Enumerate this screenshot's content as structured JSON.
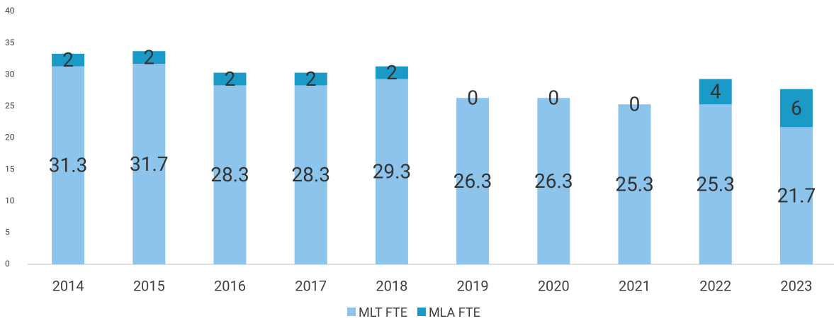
{
  "chart_data": {
    "type": "stacked_bar",
    "categories": [
      "2014",
      "2015",
      "2016",
      "2017",
      "2018",
      "2019",
      "2020",
      "2021",
      "2022",
      "2023"
    ],
    "series": [
      {
        "name": "MLT FTE",
        "color": "#8cc4eb",
        "values": [
          31.3,
          31.7,
          28.3,
          28.3,
          29.3,
          26.3,
          26.3,
          25.3,
          25.3,
          21.7
        ]
      },
      {
        "name": "MLA FTE",
        "color": "#1b9ac8",
        "values": [
          2,
          2,
          2,
          2,
          2,
          0,
          0,
          0,
          4,
          6
        ]
      }
    ],
    "ylim": [
      0,
      40
    ],
    "yticks": [
      0,
      5,
      10,
      15,
      20,
      25,
      30,
      35,
      40
    ],
    "grid": false,
    "legend": "bottom"
  }
}
